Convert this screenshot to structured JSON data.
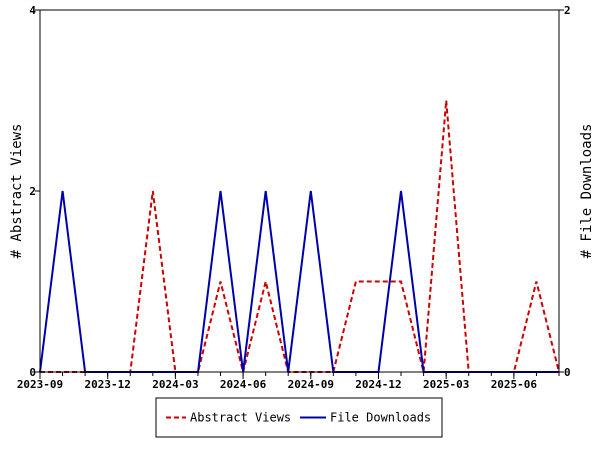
{
  "chart_data": {
    "type": "line",
    "x": [
      "2023-09",
      "2023-10",
      "2023-11",
      "2023-12",
      "2024-01",
      "2024-02",
      "2024-03",
      "2024-04",
      "2024-05",
      "2024-06",
      "2024-07",
      "2024-08",
      "2024-09",
      "2024-10",
      "2024-11",
      "2024-12",
      "2025-01",
      "2025-02",
      "2025-03",
      "2025-04",
      "2025-05",
      "2025-06",
      "2025-07",
      "2025-08"
    ],
    "x_ticks": [
      "2023-09",
      "2023-12",
      "2024-03",
      "2024-06",
      "2024-09",
      "2024-12",
      "2025-03",
      "2025-06"
    ],
    "series": [
      {
        "name": "Abstract Views",
        "axis": "left",
        "color": "#cc0000",
        "style": "dashed",
        "values": [
          0,
          0,
          0,
          0,
          0,
          2,
          0,
          0,
          1,
          0,
          1,
          0,
          0,
          0,
          1,
          1,
          1,
          0,
          3,
          0,
          0,
          0,
          1,
          0
        ]
      },
      {
        "name": "File Downloads",
        "axis": "right",
        "color": "#0000aa",
        "style": "solid",
        "values": [
          0,
          1,
          0,
          0,
          0,
          0,
          0,
          0,
          1,
          0,
          1,
          0,
          1,
          0,
          0,
          0,
          1,
          0,
          0,
          0,
          0,
          0,
          0,
          0
        ]
      }
    ],
    "ylabel": "# Abstract Views",
    "ylim": [
      0,
      4
    ],
    "yticks": [
      0,
      2,
      4
    ],
    "y2label": "# File Downloads",
    "y2lim": [
      0,
      2
    ],
    "y2ticks": [
      0,
      2
    ],
    "grid": false,
    "legend_position": "bottom"
  }
}
